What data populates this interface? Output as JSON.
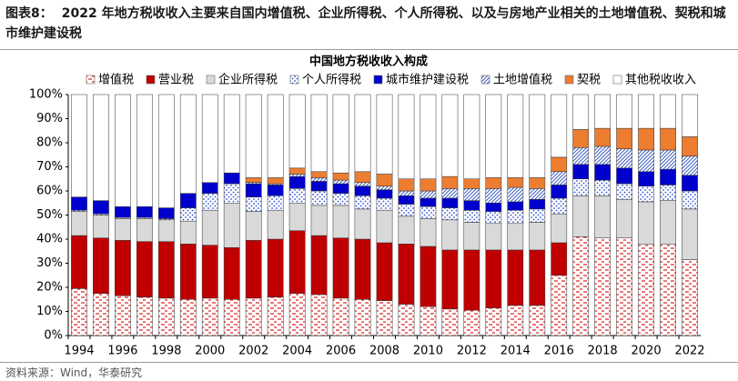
{
  "header": {
    "label": "图表8：",
    "title": "2022 年地方税收收入主要来自国内增值税、企业所得税、个人所得税、以及与房地产业相关的土地增值税、契税和城市维护建设税"
  },
  "source": "资料来源：Wind，华泰研究",
  "chart_data": {
    "type": "stacked_bar",
    "title": "中国地方税收收入构成",
    "categories": [
      "1994",
      null,
      "1996",
      null,
      "1998",
      null,
      "2000",
      null,
      "2002",
      null,
      "2004",
      null,
      "2006",
      null,
      "2008",
      null,
      "2010",
      null,
      "2012",
      null,
      "2014",
      null,
      "2016",
      null,
      "2018",
      null,
      "2020",
      null,
      "2022"
    ],
    "ylim": [
      0,
      100
    ],
    "yticks": [
      {
        "value": 0,
        "label": "0%"
      },
      {
        "value": 10,
        "label": "10%"
      },
      {
        "value": 20,
        "label": "20%"
      },
      {
        "value": 30,
        "label": "30%"
      },
      {
        "value": 40,
        "label": "40%"
      },
      {
        "value": 50,
        "label": "50%"
      },
      {
        "value": 60,
        "label": "60%"
      },
      {
        "value": 70,
        "label": "70%"
      },
      {
        "value": 80,
        "label": "80%"
      },
      {
        "value": 90,
        "label": "90%"
      },
      {
        "value": 100,
        "label": "100%"
      }
    ],
    "grid": false,
    "legend": "top",
    "series": [
      {
        "name": "增值税",
        "color": "#e03030",
        "pattern": "dash",
        "values": [
          19.5,
          17.5,
          16.5,
          16,
          15.5,
          15,
          15.5,
          15,
          15.5,
          16,
          17.5,
          17,
          15.5,
          15,
          14.5,
          13,
          12,
          11,
          10.5,
          11.5,
          12.5,
          12.5,
          25,
          41,
          40.5,
          40.5,
          38,
          38,
          31.5
        ]
      },
      {
        "name": "营业税",
        "color": "#c00000",
        "pattern": "solid",
        "values": [
          22,
          23,
          23,
          23,
          23.5,
          23,
          22,
          21.5,
          24,
          24,
          26,
          24.5,
          25,
          25,
          24,
          25,
          25,
          24.5,
          25,
          24,
          23,
          23,
          13.5,
          0,
          0,
          0,
          0,
          0,
          0
        ]
      },
      {
        "name": "企业所得税",
        "color": "#d9d9d9",
        "pattern": "solid",
        "values": [
          10,
          9.5,
          9,
          9.5,
          9,
          9.5,
          14.5,
          18.5,
          12,
          12,
          11.5,
          12.5,
          13.5,
          12.5,
          13.5,
          11.5,
          11.5,
          12.5,
          11.5,
          11,
          11,
          11.5,
          12,
          17,
          17.5,
          16,
          17.5,
          18,
          21
        ]
      },
      {
        "name": "个人所得税",
        "color": "#3050d0",
        "pattern": "dot",
        "values": [
          0.5,
          0.5,
          0.5,
          0.5,
          0.5,
          5.5,
          7,
          8,
          6,
          6,
          6,
          6,
          5,
          5.5,
          5,
          5,
          5,
          5,
          5,
          5,
          5.5,
          5.5,
          6.5,
          7,
          6.5,
          6.5,
          6.5,
          6.5,
          7.5
        ]
      },
      {
        "name": "城市维护建设税",
        "color": "#0000cc",
        "pattern": "solid",
        "values": [
          5.5,
          5.5,
          4.5,
          4.5,
          4.5,
          6,
          4.5,
          4.5,
          5.5,
          4.5,
          5,
          4,
          4,
          4,
          3.5,
          3.5,
          3.5,
          4,
          4,
          3.5,
          3.5,
          4,
          5.5,
          6,
          6.5,
          6.5,
          6,
          6.5,
          6.5
        ]
      },
      {
        "name": "土地增值税",
        "color": "#4060c0",
        "pattern": "hatch",
        "values": [
          0,
          0,
          0,
          0,
          0,
          0,
          0,
          0,
          0.5,
          0.5,
          1,
          1.5,
          1.5,
          1.5,
          1.5,
          2,
          3,
          4,
          5,
          6,
          6,
          4.5,
          5.5,
          7,
          7.5,
          8,
          9,
          8,
          8
        ]
      },
      {
        "name": "契税",
        "color": "#ed7d31",
        "pattern": "solid",
        "values": [
          0,
          0,
          0,
          0,
          0,
          0,
          0,
          0,
          2,
          2.5,
          2.5,
          2.5,
          3,
          4.5,
          5,
          5,
          5,
          5,
          4,
          4.5,
          4,
          4.5,
          6,
          7.5,
          7.5,
          8.5,
          9,
          9,
          8
        ]
      },
      {
        "name": "其他税收收入",
        "color": "#ffffff",
        "pattern": "solid",
        "values": [
          42.5,
          44,
          46.5,
          46.5,
          47,
          41,
          36.5,
          32.5,
          34.5,
          34.5,
          30.5,
          32,
          32.5,
          32,
          33,
          35,
          35,
          34,
          35,
          34.5,
          34.5,
          34.5,
          26,
          14.5,
          14,
          14,
          14,
          14,
          17.5
        ]
      }
    ]
  }
}
